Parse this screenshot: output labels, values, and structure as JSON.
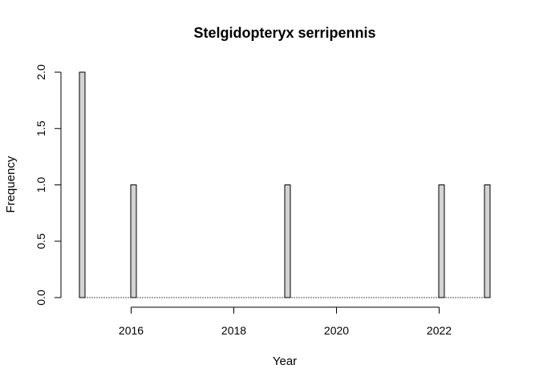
{
  "chart_data": {
    "type": "bar",
    "title": "Stelgidopteryx serripennis",
    "xlabel": "Year",
    "ylabel": "Frequency",
    "x_ticks": [
      2016,
      2018,
      2020,
      2022
    ],
    "y_ticks": [
      0.0,
      0.5,
      1.0,
      1.5,
      2.0
    ],
    "y_tick_labels": [
      "0.0",
      "0.5",
      "1.0",
      "1.5",
      "2.0"
    ],
    "xlim": [
      2015,
      2023
    ],
    "ylim": [
      0,
      2
    ],
    "bar_fill": "#d3d3d3",
    "bar_stroke": "#000000",
    "bars": [
      {
        "year": 2015,
        "value": 2
      },
      {
        "year": 2016,
        "value": 1
      },
      {
        "year": 2019,
        "value": 1
      },
      {
        "year": 2022,
        "value": 1
      },
      {
        "year": 2023,
        "value": 1
      }
    ],
    "grid": false,
    "legend": "none"
  }
}
